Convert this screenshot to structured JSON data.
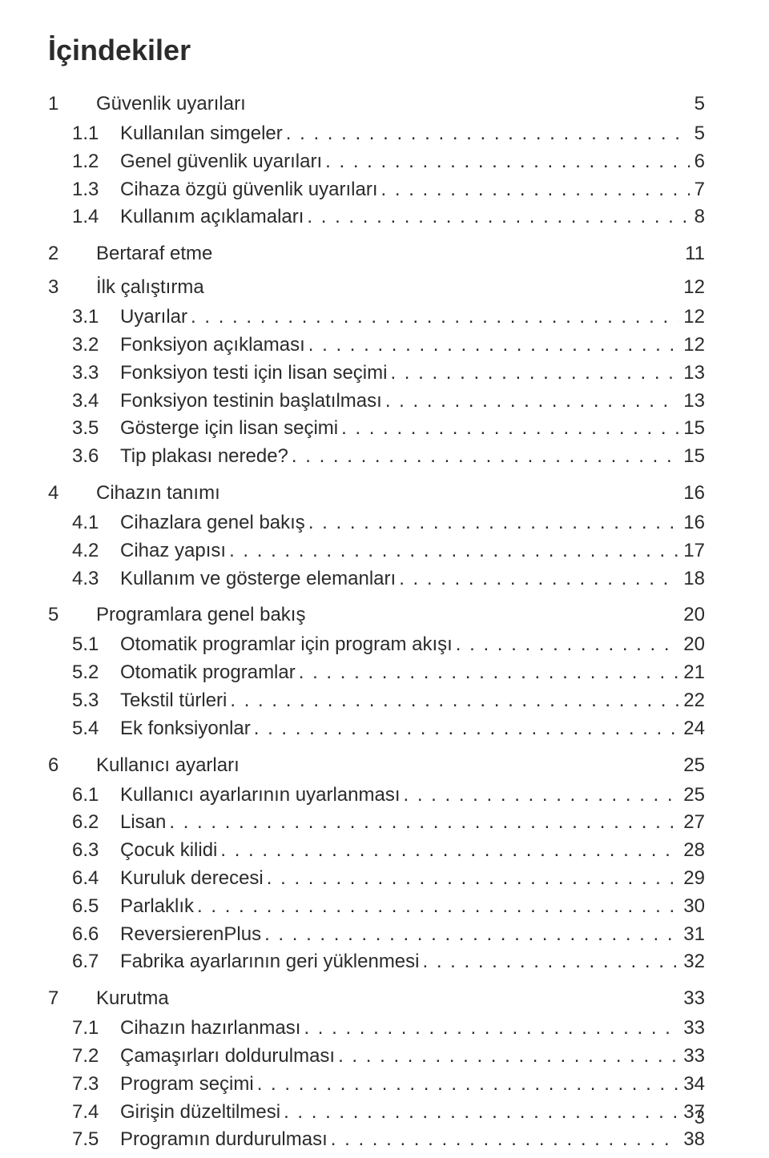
{
  "title": "İçindekiler",
  "footer_page": "3",
  "text_color": "#2b2b2b",
  "background_color": "#ffffff",
  "body_fontsize": 24,
  "title_fontsize": 36,
  "sections": [
    {
      "num": "1",
      "label": "Güvenlik uyarıları",
      "page": "5",
      "entries": [
        {
          "num": "1.1",
          "label": "Kullanılan simgeler",
          "page": "5"
        },
        {
          "num": "1.2",
          "label": "Genel güvenlik uyarıları",
          "page": "6"
        },
        {
          "num": "1.3",
          "label": "Cihaza özgü güvenlik uyarıları",
          "page": "7"
        },
        {
          "num": "1.4",
          "label": "Kullanım açıklamaları",
          "page": "8"
        }
      ]
    },
    {
      "num": "2",
      "label": "Bertaraf etme",
      "page": "11",
      "entries": []
    },
    {
      "num": "3",
      "label": "İlk çalıştırma",
      "page": "12",
      "entries": [
        {
          "num": "3.1",
          "label": "Uyarılar",
          "page": "12"
        },
        {
          "num": "3.2",
          "label": "Fonksiyon açıklaması",
          "page": "12"
        },
        {
          "num": "3.3",
          "label": "Fonksiyon testi için lisan seçimi",
          "page": "13"
        },
        {
          "num": "3.4",
          "label": "Fonksiyon testinin başlatılması",
          "page": "13"
        },
        {
          "num": "3.5",
          "label": "Gösterge için lisan seçimi",
          "page": "15"
        },
        {
          "num": "3.6",
          "label": "Tip plakası nerede?",
          "page": "15"
        }
      ]
    },
    {
      "num": "4",
      "label": "Cihazın tanımı",
      "page": "16",
      "entries": [
        {
          "num": "4.1",
          "label": "Cihazlara genel bakış",
          "page": "16"
        },
        {
          "num": "4.2",
          "label": "Cihaz yapısı",
          "page": "17"
        },
        {
          "num": "4.3",
          "label": "Kullanım ve gösterge elemanları",
          "page": "18"
        }
      ]
    },
    {
      "num": "5",
      "label": "Programlara genel bakış",
      "page": "20",
      "entries": [
        {
          "num": "5.1",
          "label": "Otomatik programlar için program akışı",
          "page": "20"
        },
        {
          "num": "5.2",
          "label": "Otomatik programlar",
          "page": "21"
        },
        {
          "num": "5.3",
          "label": "Tekstil türleri",
          "page": "22"
        },
        {
          "num": "5.4",
          "label": "Ek fonksiyonlar",
          "page": "24"
        }
      ]
    },
    {
      "num": "6",
      "label": "Kullanıcı ayarları",
      "page": "25",
      "entries": [
        {
          "num": "6.1",
          "label": "Kullanıcı ayarlarının uyarlanması",
          "page": "25"
        },
        {
          "num": "6.2",
          "label": "Lisan",
          "page": "27"
        },
        {
          "num": "6.3",
          "label": "Çocuk kilidi",
          "page": "28"
        },
        {
          "num": "6.4",
          "label": "Kuruluk derecesi",
          "page": "29"
        },
        {
          "num": "6.5",
          "label": "Parlaklık",
          "page": "30"
        },
        {
          "num": "6.6",
          "label": "ReversierenPlus",
          "page": "31"
        },
        {
          "num": "6.7",
          "label": "Fabrika ayarlarının geri yüklenmesi",
          "page": "32"
        }
      ]
    },
    {
      "num": "7",
      "label": "Kurutma",
      "page": "33",
      "entries": [
        {
          "num": "7.1",
          "label": "Cihazın hazırlanması",
          "page": "33"
        },
        {
          "num": "7.2",
          "label": "Çamaşırları doldurulması",
          "page": "33"
        },
        {
          "num": "7.3",
          "label": "Program seçimi",
          "page": "34"
        },
        {
          "num": "7.4",
          "label": "Girişin düzeltilmesi",
          "page": "37"
        },
        {
          "num": "7.5",
          "label": "Programın durdurulması",
          "page": "38"
        }
      ]
    }
  ]
}
